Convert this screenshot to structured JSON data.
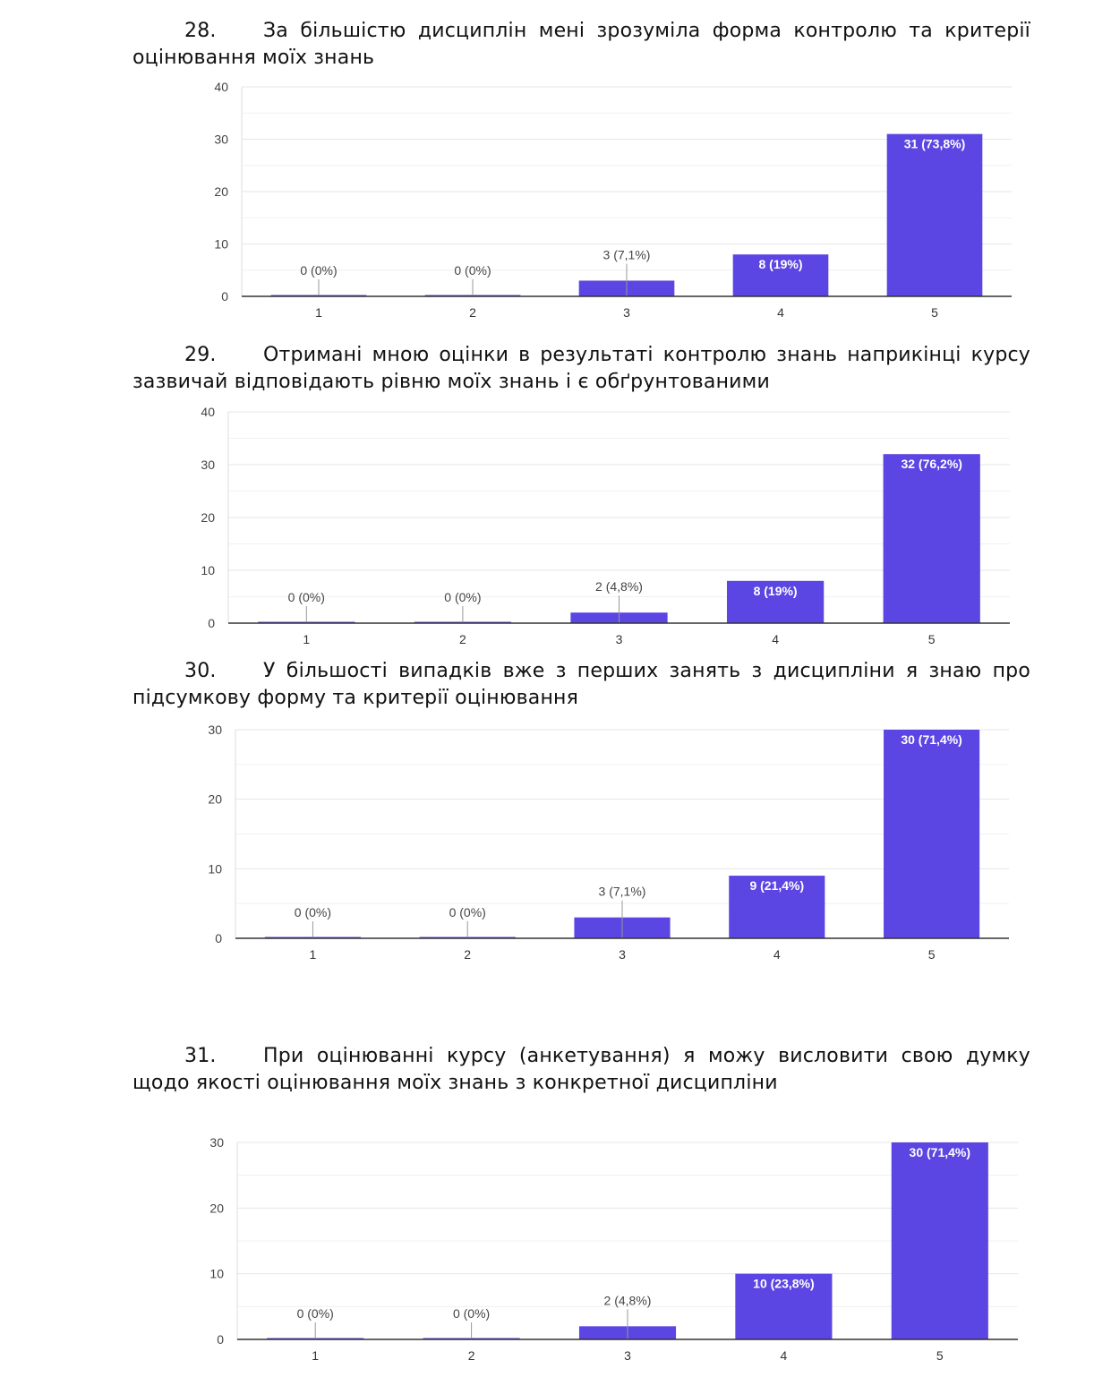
{
  "questions": [
    {
      "number": "28.",
      "text": "За більшістю дисциплін мені зрозуміла форма контролю та критерії оцінювання моїх знань"
    },
    {
      "number": "29.",
      "text": "Отримані мною оцінки в результаті контролю знань наприкінці курсу зазвичай відповідають рівню моїх знань і є обґрунтованими"
    },
    {
      "number": "30.",
      "text": "У більшості випадків вже з перших занять з дисципліни я знаю про підсумкову форму та критерії оцінювання"
    },
    {
      "number": "31.",
      "text": "При оцінюванні курсу (анкетування) я можу висловити свою думку щодо якості оцінювання моїх знань з конкретної дисципліни"
    }
  ],
  "colors": {
    "bar": "#5b45e3",
    "axis": "#333333",
    "grid": "#e6e6e6"
  },
  "chart_data": [
    {
      "type": "bar",
      "title": "",
      "categories": [
        "1",
        "2",
        "3",
        "4",
        "5"
      ],
      "values": [
        0,
        0,
        3,
        8,
        31
      ],
      "labels": [
        "0 (0%)",
        "0 (0%)",
        "3 (7,1%)",
        "8 (19%)",
        "31 (73,8%)"
      ],
      "ylim": [
        0,
        40
      ],
      "yticks": [
        0,
        10,
        20,
        30,
        40
      ],
      "grid": true
    },
    {
      "type": "bar",
      "title": "",
      "categories": [
        "1",
        "2",
        "3",
        "4",
        "5"
      ],
      "values": [
        0,
        0,
        2,
        8,
        32
      ],
      "labels": [
        "0 (0%)",
        "0 (0%)",
        "2 (4,8%)",
        "8 (19%)",
        "32 (76,2%)"
      ],
      "ylim": [
        0,
        40
      ],
      "yticks": [
        0,
        10,
        20,
        30,
        40
      ],
      "grid": true
    },
    {
      "type": "bar",
      "title": "",
      "categories": [
        "1",
        "2",
        "3",
        "4",
        "5"
      ],
      "values": [
        0,
        0,
        3,
        9,
        30
      ],
      "labels": [
        "0 (0%)",
        "0 (0%)",
        "3 (7,1%)",
        "9 (21,4%)",
        "30 (71,4%)"
      ],
      "ylim": [
        0,
        30
      ],
      "yticks": [
        0,
        10,
        20,
        30
      ],
      "grid": true
    },
    {
      "type": "bar",
      "title": "",
      "categories": [
        "1",
        "2",
        "3",
        "4",
        "5"
      ],
      "values": [
        0,
        0,
        2,
        10,
        30
      ],
      "labels": [
        "0 (0%)",
        "0 (0%)",
        "2 (4,8%)",
        "10 (23,8%)",
        "30 (71,4%)"
      ],
      "ylim": [
        0,
        30
      ],
      "yticks": [
        0,
        10,
        20,
        30
      ],
      "grid": true
    }
  ]
}
